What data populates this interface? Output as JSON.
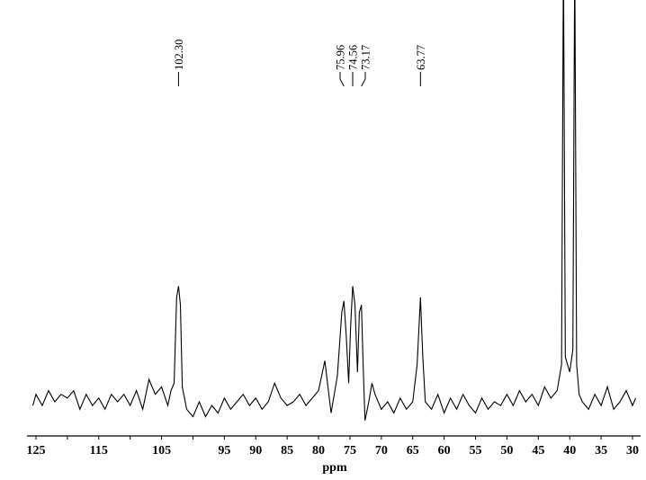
{
  "chart_data": {
    "type": "line",
    "xlabel": "ppm",
    "xlim": [
      125.5,
      29.5
    ],
    "ylim": [
      0,
      100
    ],
    "xticks": [
      125,
      115,
      105,
      95,
      90,
      85,
      80,
      75,
      70,
      65,
      60,
      55,
      50,
      45,
      40,
      35,
      30
    ],
    "xminorticks": [
      120,
      110,
      100
    ],
    "color": "#000000",
    "annotations": [
      {
        "value": 102.3,
        "label": "102.30"
      },
      {
        "value": 75.96,
        "label": "75.96"
      },
      {
        "value": 74.56,
        "label": "74.56"
      },
      {
        "value": 73.17,
        "label": "73.17"
      },
      {
        "value": 63.77,
        "label": "63.77"
      }
    ],
    "x": [
      125.5,
      125,
      124,
      123,
      122,
      121,
      120,
      119,
      118,
      117,
      116,
      115,
      114,
      113,
      112,
      111,
      110,
      109,
      108,
      107,
      106,
      105,
      104,
      103.5,
      103,
      102.6,
      102.3,
      102.0,
      101.7,
      101,
      100,
      99,
      98,
      97,
      96,
      95,
      94,
      93,
      92,
      91,
      90,
      89,
      88,
      87,
      86,
      85,
      84,
      83,
      82,
      81,
      80,
      79,
      78.5,
      78,
      77.5,
      77,
      76.3,
      75.96,
      75.6,
      75.2,
      74.9,
      74.56,
      74.2,
      73.8,
      73.5,
      73.17,
      72.9,
      72.6,
      72,
      71.5,
      71,
      70,
      69,
      68,
      67,
      66,
      65,
      64.3,
      63.77,
      63.4,
      63,
      62,
      61,
      60,
      59,
      58,
      57,
      56,
      55,
      54,
      53,
      52,
      51,
      50,
      49,
      48,
      47,
      46,
      45,
      44,
      43,
      42,
      41.3,
      41.0,
      40.7,
      40,
      39.5,
      39.2,
      38.9,
      38.5,
      38,
      37,
      36,
      35,
      34,
      33,
      32,
      31,
      30,
      29.5
    ],
    "values": [
      -1,
      2,
      -1,
      3,
      0,
      2,
      1,
      3,
      -2,
      2,
      -1,
      1,
      -2,
      2,
      0,
      2,
      -1,
      3,
      -2,
      6,
      2,
      4,
      -1,
      3,
      5,
      28,
      31,
      26,
      4,
      -2,
      -4,
      0,
      -4,
      -1,
      -3,
      1,
      -2,
      0,
      2,
      -1,
      1,
      -2,
      0,
      5,
      1,
      -1,
      0,
      2,
      -1,
      1,
      3,
      11,
      4,
      -3,
      2,
      7,
      24,
      27,
      18,
      5,
      20,
      31,
      26,
      8,
      24,
      26,
      10,
      -5,
      0,
      5,
      2,
      -2,
      0,
      -3,
      1,
      -2,
      0,
      10,
      28,
      12,
      0,
      -2,
      2,
      -3,
      1,
      -2,
      2,
      -1,
      -3,
      1,
      -2,
      0,
      -1,
      2,
      -1,
      3,
      0,
      2,
      -1,
      4,
      1,
      3,
      10,
      120,
      12,
      8,
      14,
      120,
      10,
      2,
      0,
      -2,
      2,
      -1,
      4,
      -2,
      0,
      3,
      -1,
      1
    ]
  }
}
